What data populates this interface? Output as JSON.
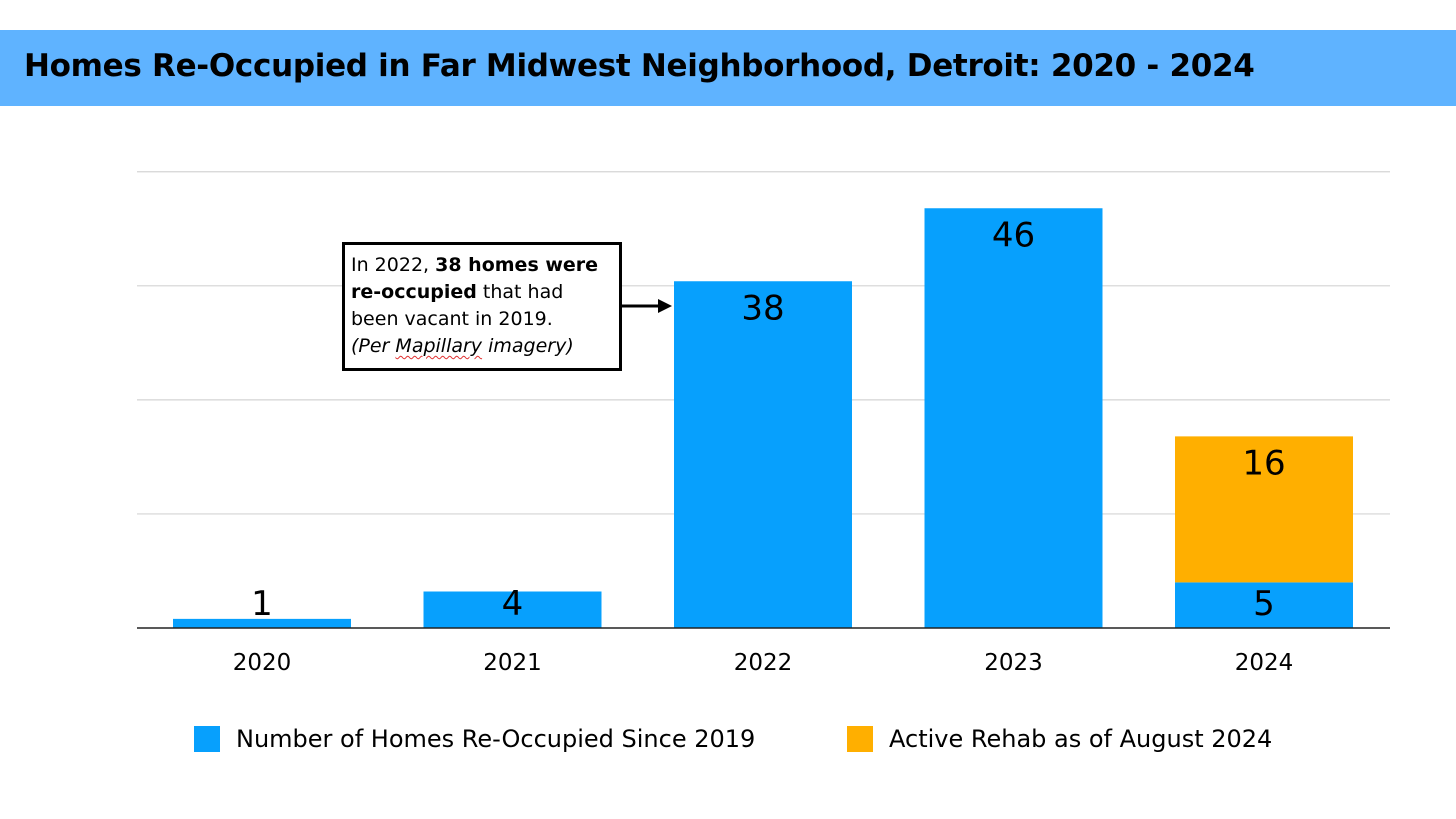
{
  "title": "Homes Re-Occupied in Far Midwest Neighborhood, Detroit: 2020 - 2024",
  "annotation": {
    "t1": "In 2022, ",
    "t2": "38 homes were",
    "t3": "re-occupied",
    "t4": " that had",
    "t5": "been vacant in 2019.",
    "t6": "(Per ",
    "t7": "Mapillary",
    "t8": " imagery)"
  },
  "colors": {
    "reoccupied": "#07a0fd",
    "rehab": "#ffaf00",
    "title_bar": "#5fb3ff"
  },
  "chart_data": {
    "type": "bar",
    "stacked": true,
    "categories": [
      "2020",
      "2021",
      "2022",
      "2023",
      "2024"
    ],
    "series": [
      {
        "name": "Number of Homes Re-Occupied Since 2019",
        "values": [
          1,
          4,
          38,
          46,
          5
        ],
        "labels": [
          "1",
          "4",
          "38",
          "46",
          "5"
        ]
      },
      {
        "name": "Active Rehab as of August 2024",
        "values": [
          0,
          0,
          0,
          0,
          16
        ],
        "labels": [
          "",
          "",
          "",
          "",
          "16"
        ]
      }
    ],
    "ylim": [
      0,
      50
    ],
    "grid": true,
    "y_tick_labels_shown": false,
    "legend_position": "bottom"
  }
}
